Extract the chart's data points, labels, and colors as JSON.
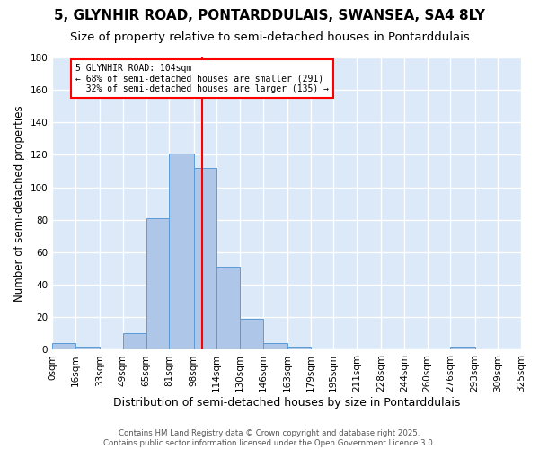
{
  "title": "5, GLYNHIR ROAD, PONTARDDULAIS, SWANSEA, SA4 8LY",
  "subtitle": "Size of property relative to semi-detached houses in Pontarddulais",
  "xlabel": "Distribution of semi-detached houses by size in Pontarddulais",
  "ylabel": "Number of semi-detached properties",
  "property_size": 104,
  "property_label": "5 GLYNHIR ROAD: 104sqm",
  "pct_smaller": 68,
  "count_smaller": 291,
  "pct_larger": 32,
  "count_larger": 135,
  "bin_edges": [
    0,
    16,
    33,
    49,
    65,
    81,
    98,
    114,
    130,
    146,
    163,
    179,
    195,
    211,
    228,
    244,
    260,
    276,
    293,
    309,
    325
  ],
  "bin_labels": [
    "0sqm",
    "16sqm",
    "33sqm",
    "49sqm",
    "65sqm",
    "81sqm",
    "98sqm",
    "114sqm",
    "130sqm",
    "146sqm",
    "163sqm",
    "179sqm",
    "195sqm",
    "211sqm",
    "228sqm",
    "244sqm",
    "260sqm",
    "276sqm",
    "293sqm",
    "309sqm",
    "325sqm"
  ],
  "bar_heights": [
    4,
    2,
    0,
    10,
    81,
    121,
    112,
    51,
    19,
    4,
    2,
    0,
    0,
    0,
    0,
    0,
    0,
    2,
    0,
    0
  ],
  "bar_color": "#aec6e8",
  "bar_edge_color": "#5b9bd5",
  "vline_x": 104,
  "vline_color": "red",
  "background_color": "#dce9f8",
  "grid_color": "#ffffff",
  "ylim": [
    0,
    180
  ],
  "yticks": [
    0,
    20,
    40,
    60,
    80,
    100,
    120,
    140,
    160,
    180
  ],
  "title_fontsize": 11,
  "subtitle_fontsize": 9.5,
  "xlabel_fontsize": 9,
  "ylabel_fontsize": 8.5,
  "tick_fontsize": 7.5,
  "footer_text": "Contains HM Land Registry data © Crown copyright and database right 2025.\nContains public sector information licensed under the Open Government Licence 3.0."
}
